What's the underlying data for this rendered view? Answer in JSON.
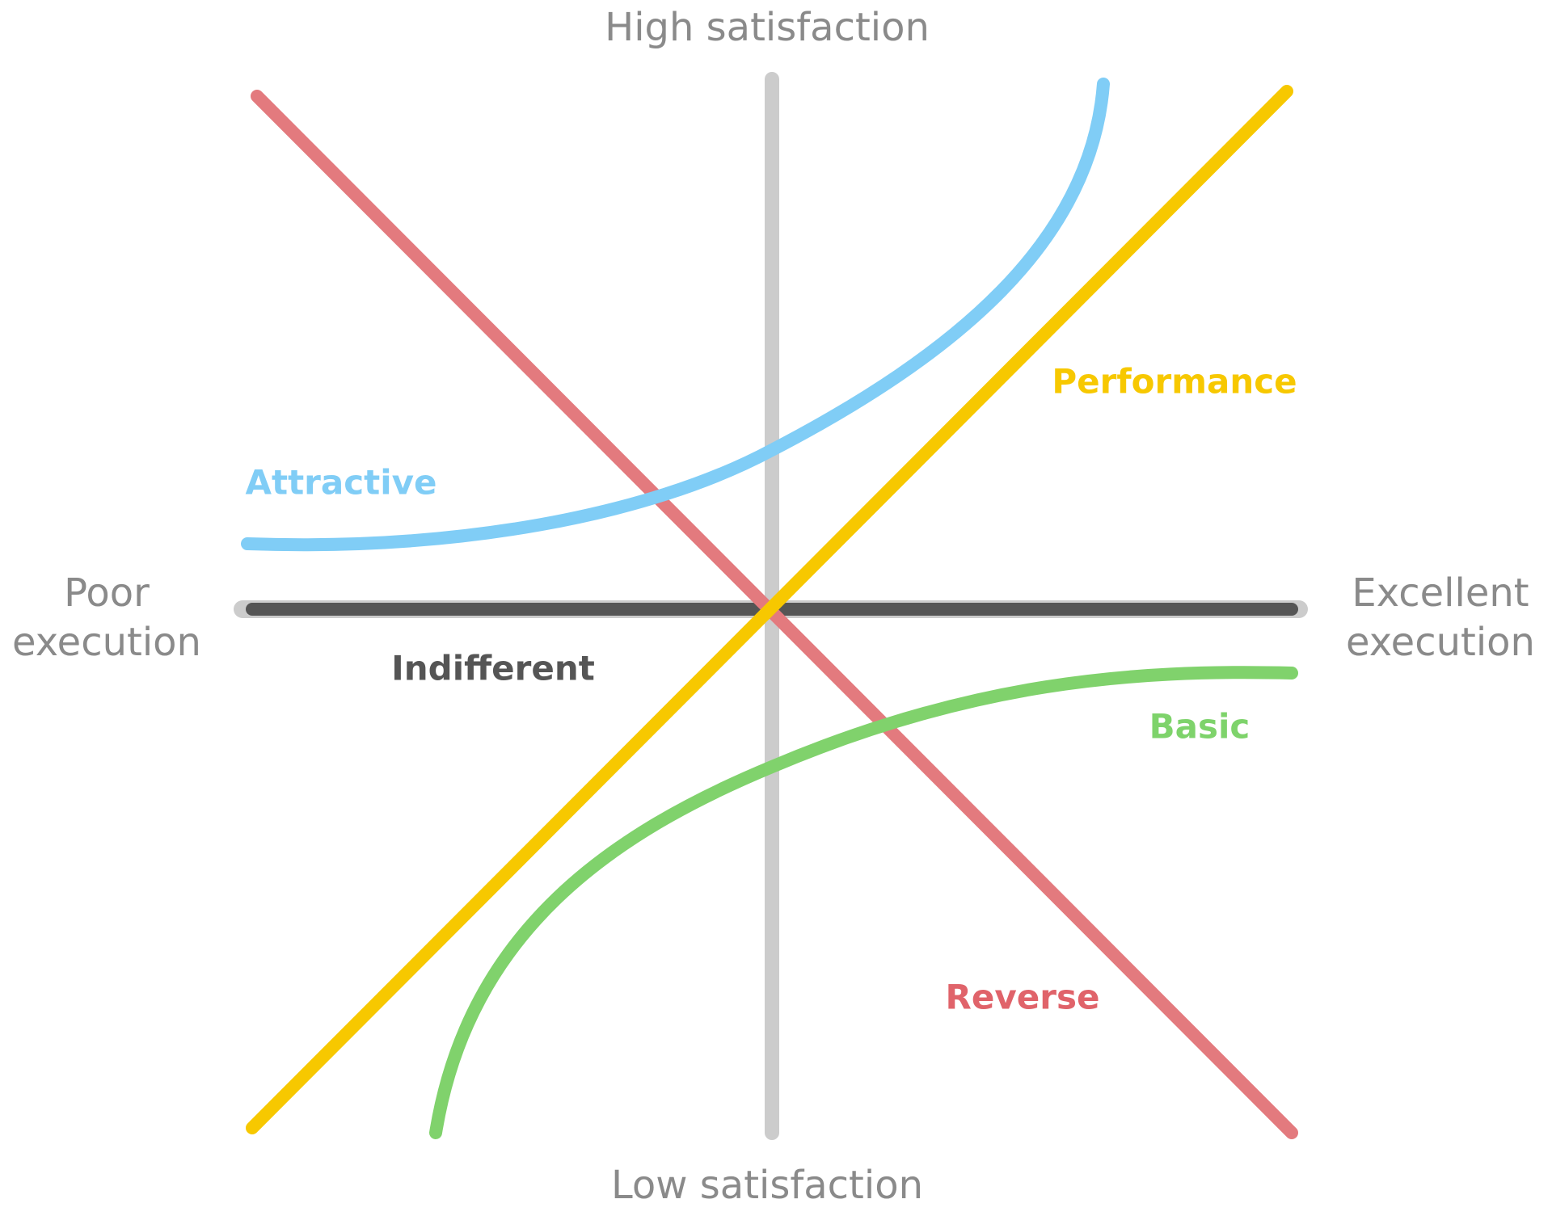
{
  "axes": {
    "top": "High satisfaction",
    "bottom": "Low satisfaction",
    "left": [
      "Poor",
      "execution"
    ],
    "right": [
      "Excellent",
      "execution"
    ]
  },
  "curves": {
    "attractive": "Attractive",
    "performance": "Performance",
    "indifferent": "Indifferent",
    "basic": "Basic",
    "reverse": "Reverse"
  }
}
